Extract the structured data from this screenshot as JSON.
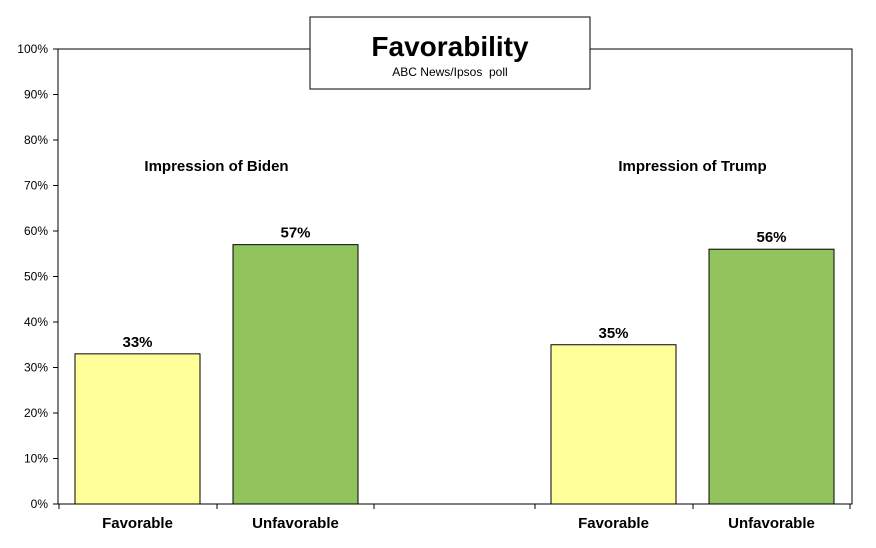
{
  "chart_data": {
    "type": "bar",
    "title": "Favorability",
    "subtitle": "ABC News/Ipsos  poll",
    "ylim": [
      0,
      100
    ],
    "yticks": [
      0,
      10,
      20,
      30,
      40,
      50,
      60,
      70,
      80,
      90,
      100
    ],
    "ytick_suffix": "%",
    "grid": false,
    "groups": [
      {
        "label": "Impression of Biden",
        "bars": [
          {
            "category": "Favorable",
            "value": 33,
            "label": "33%"
          },
          {
            "category": "Unfavorable",
            "value": 57,
            "label": "57%"
          }
        ]
      },
      {
        "label": "Impression of Trump",
        "bars": [
          {
            "category": "Favorable",
            "value": 35,
            "label": "35%"
          },
          {
            "category": "Unfavorable",
            "value": 56,
            "label": "56%"
          }
        ]
      }
    ],
    "colors": {
      "Favorable": "#ffff99",
      "Unfavorable": "#92c45e"
    }
  }
}
